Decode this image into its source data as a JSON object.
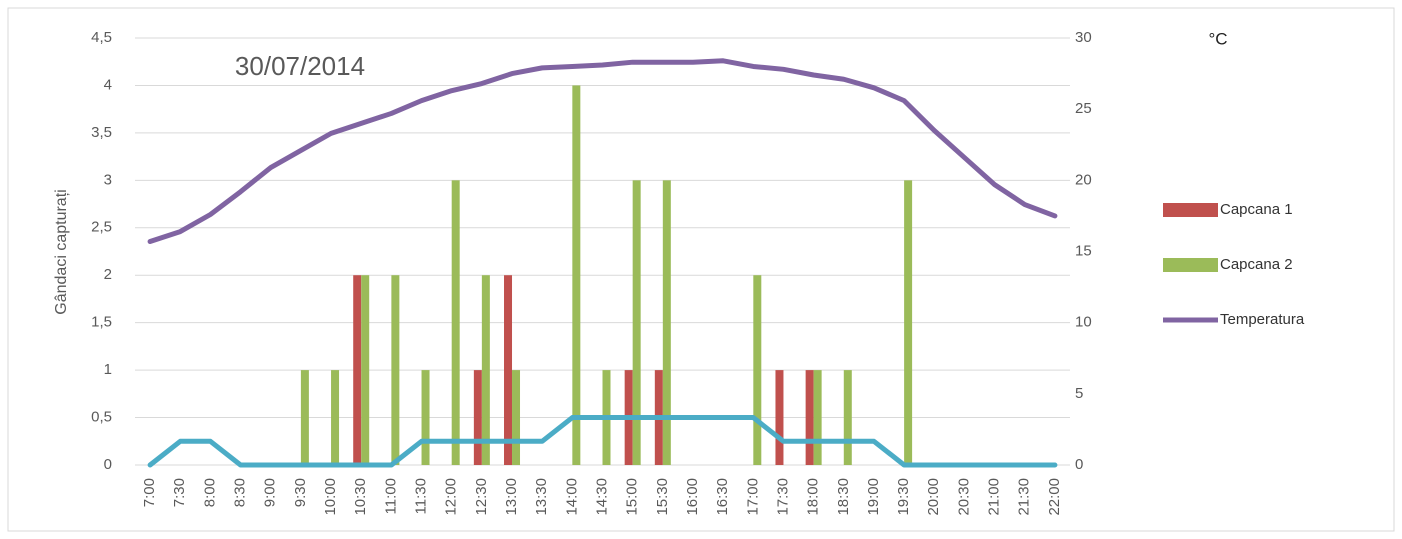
{
  "chart_data": {
    "type": "bar",
    "annotation": "30/07/2014",
    "ylabel": "Gândaci capturați",
    "y2label": "°C",
    "categories": [
      "7:00",
      "7:30",
      "8:00",
      "8:30",
      "9:00",
      "9:30",
      "10:00",
      "10:30",
      "11:00",
      "11:30",
      "12:00",
      "12:30",
      "13:00",
      "13:30",
      "14:00",
      "14:30",
      "15:00",
      "15:30",
      "16:00",
      "16:30",
      "17:00",
      "17:30",
      "18:00",
      "18:30",
      "19:00",
      "19:30",
      "20:00",
      "20:30",
      "21:00",
      "21:30",
      "22:00"
    ],
    "series": [
      {
        "name": "Capcana 1",
        "type": "bar",
        "color": "#c0504d",
        "values": [
          0,
          0,
          0,
          0,
          0,
          0,
          0,
          2,
          0,
          0,
          0,
          1,
          2,
          0,
          0,
          0,
          1,
          1,
          0,
          0,
          0,
          1,
          1,
          0,
          0,
          0,
          0,
          0,
          0,
          0,
          0
        ]
      },
      {
        "name": "Capcana 2",
        "type": "bar",
        "color": "#9bbb59",
        "values": [
          0,
          0,
          0,
          0,
          0,
          1,
          1,
          2,
          2,
          1,
          3,
          2,
          1,
          0,
          4,
          1,
          3,
          3,
          0,
          0,
          2,
          0,
          1,
          1,
          0,
          3,
          0,
          0,
          0,
          0,
          0
        ]
      },
      {
        "name": "Temperatura",
        "type": "line",
        "axis": "y2",
        "color": "#8064a2",
        "values": [
          15.7,
          16.4,
          17.6,
          19.2,
          20.9,
          22.1,
          23.3,
          24.0,
          24.7,
          25.6,
          26.3,
          26.8,
          27.5,
          27.9,
          28.0,
          28.1,
          28.3,
          28.3,
          28.3,
          28.4,
          28.0,
          27.8,
          27.4,
          27.1,
          26.5,
          25.6,
          23.5,
          21.6,
          19.7,
          18.3,
          17.5
        ]
      },
      {
        "type": "line",
        "color": "#4bacc6",
        "values": [
          0,
          0.25,
          0.25,
          0,
          0,
          0,
          0,
          0,
          0,
          0.25,
          0.25,
          0.25,
          0.25,
          0.25,
          0.5,
          0.5,
          0.5,
          0.5,
          0.5,
          0.5,
          0.5,
          0.25,
          0.25,
          0.25,
          0.25,
          0,
          0,
          0,
          0,
          0,
          0
        ]
      }
    ],
    "ylim": [
      0,
      4.5
    ],
    "yticks": [
      0,
      {
        "value": 0.5,
        "label": "0,5"
      },
      1,
      {
        "value": 1.5,
        "label": "1,5"
      },
      2,
      {
        "value": 2.5,
        "label": "2,5"
      },
      3,
      {
        "value": 3.5,
        "label": "3,5"
      },
      4,
      {
        "value": 4.5,
        "label": "4,5"
      }
    ],
    "y2lim": [
      0,
      30
    ],
    "y2ticks": [
      0,
      5,
      10,
      15,
      20,
      25,
      30
    ],
    "grid": true,
    "legend": "right"
  }
}
